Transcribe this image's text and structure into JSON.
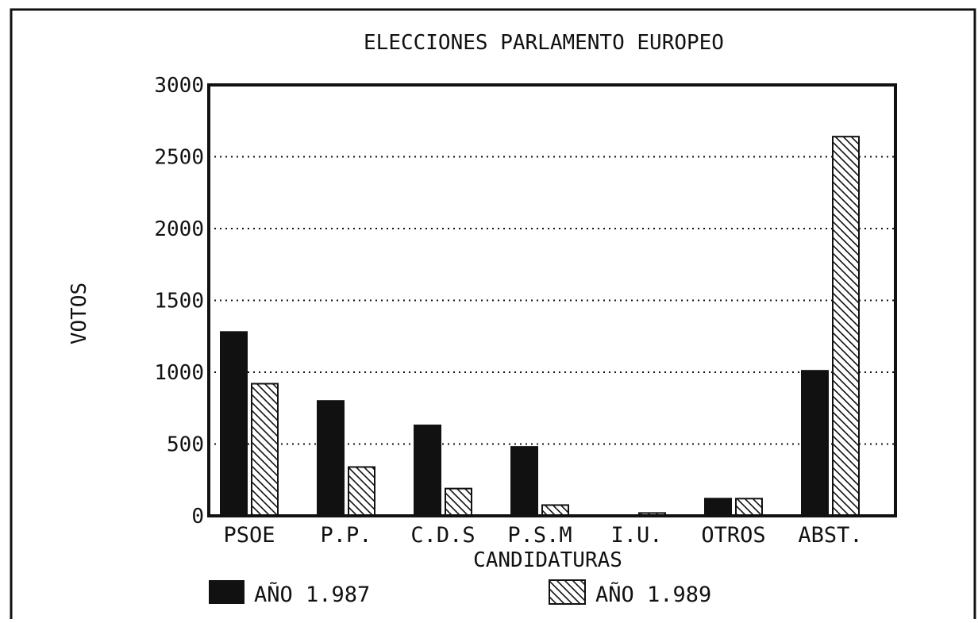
{
  "chart_data": {
    "type": "bar",
    "title": "ELECCIONES PARLAMENTO EUROPEO",
    "xlabel": "CANDIDATURAS",
    "ylabel": "VOTOS",
    "categories": [
      "PSOE",
      "P.P.",
      "C.D.S",
      "P.S.M",
      "I.U.",
      "OTROS",
      "ABST."
    ],
    "ylim": [
      0,
      3000
    ],
    "yticks": [
      "0",
      "500",
      "1000",
      "1500",
      "2000",
      "2500",
      "3000"
    ],
    "grid": "horizontal dotted",
    "legend_position": "bottom",
    "series": [
      {
        "name": "AÑO 1.987",
        "values": [
          1280,
          800,
          630,
          480,
          0,
          120,
          1010
        ],
        "fill": "#111111"
      },
      {
        "name": "AÑO 1.989",
        "values": [
          920,
          340,
          190,
          75,
          20,
          120,
          2640
        ],
        "fill": "hatched"
      }
    ]
  }
}
